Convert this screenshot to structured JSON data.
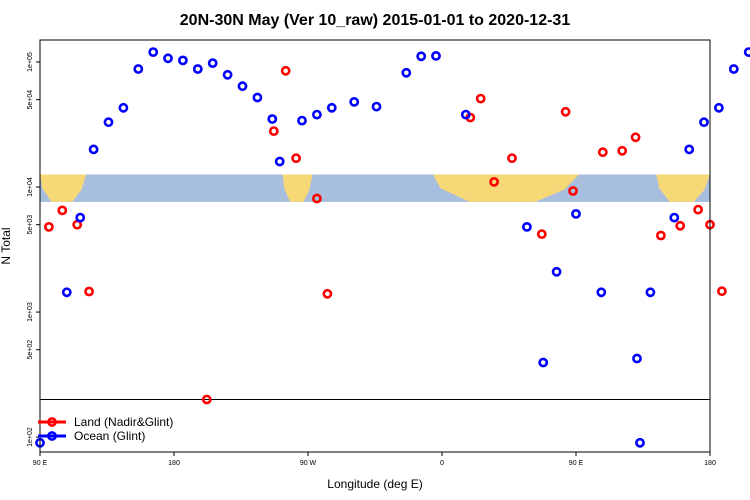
{
  "chart_data": {
    "type": "scatter",
    "title": "20N-30N May (Ver 10_raw)   2015-01-01 to 2020-12-31",
    "xlabel": "Longitude (deg E)",
    "ylabel": "N Total",
    "x_ticks": [
      {
        "value": 90,
        "label": "90 E"
      },
      {
        "value": 180,
        "label": "180"
      },
      {
        "value": 270,
        "label": "90 W"
      },
      {
        "value": 360,
        "label": "0"
      },
      {
        "value": 450,
        "label": "90 E"
      },
      {
        "value": 540,
        "label": "180"
      }
    ],
    "xlim": [
      90,
      540
    ],
    "y_scale": "log",
    "y_ticks": [
      {
        "value": 100,
        "label": "1e+02"
      },
      {
        "value": 500,
        "label": "5e+02"
      },
      {
        "value": 1000,
        "label": "1e+03"
      },
      {
        "value": 5000,
        "label": "5e+03"
      },
      {
        "value": 10000,
        "label": "1e+04"
      },
      {
        "value": 50000,
        "label": "5e+04"
      },
      {
        "value": 100000,
        "label": "1e+05"
      }
    ],
    "ylim": [
      76,
      150000
    ],
    "reference_line_y": 200,
    "map_strip_y": [
      7600,
      12600
    ],
    "legend": {
      "position": "bottom-left",
      "entries": [
        {
          "label": "Land (Nadir&Glint)",
          "color": "#ff0000"
        },
        {
          "label": "Ocean (Glint)",
          "color": "#0000ff"
        }
      ]
    },
    "series": [
      {
        "name": "Land (Nadir&Glint)",
        "color": "#ff0000",
        "points": [
          [
            96,
            4800
          ],
          [
            105,
            6500
          ],
          [
            115,
            5000
          ],
          [
            123,
            1460
          ],
          [
            202,
            200
          ],
          [
            247,
            28000
          ],
          [
            255,
            85000
          ],
          [
            262,
            17000
          ],
          [
            276,
            8100
          ],
          [
            283,
            1400
          ],
          [
            379,
            36000
          ],
          [
            386,
            51000
          ],
          [
            395,
            11000
          ],
          [
            407,
            17000
          ],
          [
            427,
            4200
          ],
          [
            443,
            40000
          ],
          [
            448,
            9300
          ],
          [
            468,
            19000
          ],
          [
            481,
            19500
          ],
          [
            490,
            25000
          ],
          [
            507,
            4100
          ],
          [
            520,
            4900
          ],
          [
            532,
            6600
          ],
          [
            540,
            5000
          ],
          [
            548,
            1470
          ]
        ]
      },
      {
        "name": "Ocean (Glint)",
        "color": "#0000ff",
        "points": [
          [
            90,
            90
          ],
          [
            108,
            1440
          ],
          [
            117,
            5700
          ],
          [
            126,
            20000
          ],
          [
            136,
            33000
          ],
          [
            146,
            43000
          ],
          [
            156,
            88000
          ],
          [
            166,
            120000
          ],
          [
            176,
            107000
          ],
          [
            186,
            103000
          ],
          [
            196,
            88000
          ],
          [
            206,
            98000
          ],
          [
            216,
            79000
          ],
          [
            226,
            64000
          ],
          [
            236,
            52000
          ],
          [
            246,
            35000
          ],
          [
            251,
            16000
          ],
          [
            266,
            34000
          ],
          [
            276,
            38000
          ],
          [
            286,
            43000
          ],
          [
            301,
            48000
          ],
          [
            316,
            44000
          ],
          [
            336,
            82000
          ],
          [
            346,
            111000
          ],
          [
            356,
            112000
          ],
          [
            376,
            38000
          ],
          [
            417,
            4800
          ],
          [
            428,
            395
          ],
          [
            437,
            2100
          ],
          [
            450,
            6100
          ],
          [
            467,
            1440
          ],
          [
            491,
            425
          ],
          [
            493,
            90
          ],
          [
            500,
            1440
          ],
          [
            516,
            5700
          ],
          [
            526,
            20000
          ],
          [
            536,
            33000
          ],
          [
            546,
            43000
          ],
          [
            556,
            88000
          ],
          [
            566,
            120000
          ],
          [
            576,
            107000
          ]
        ]
      }
    ]
  }
}
